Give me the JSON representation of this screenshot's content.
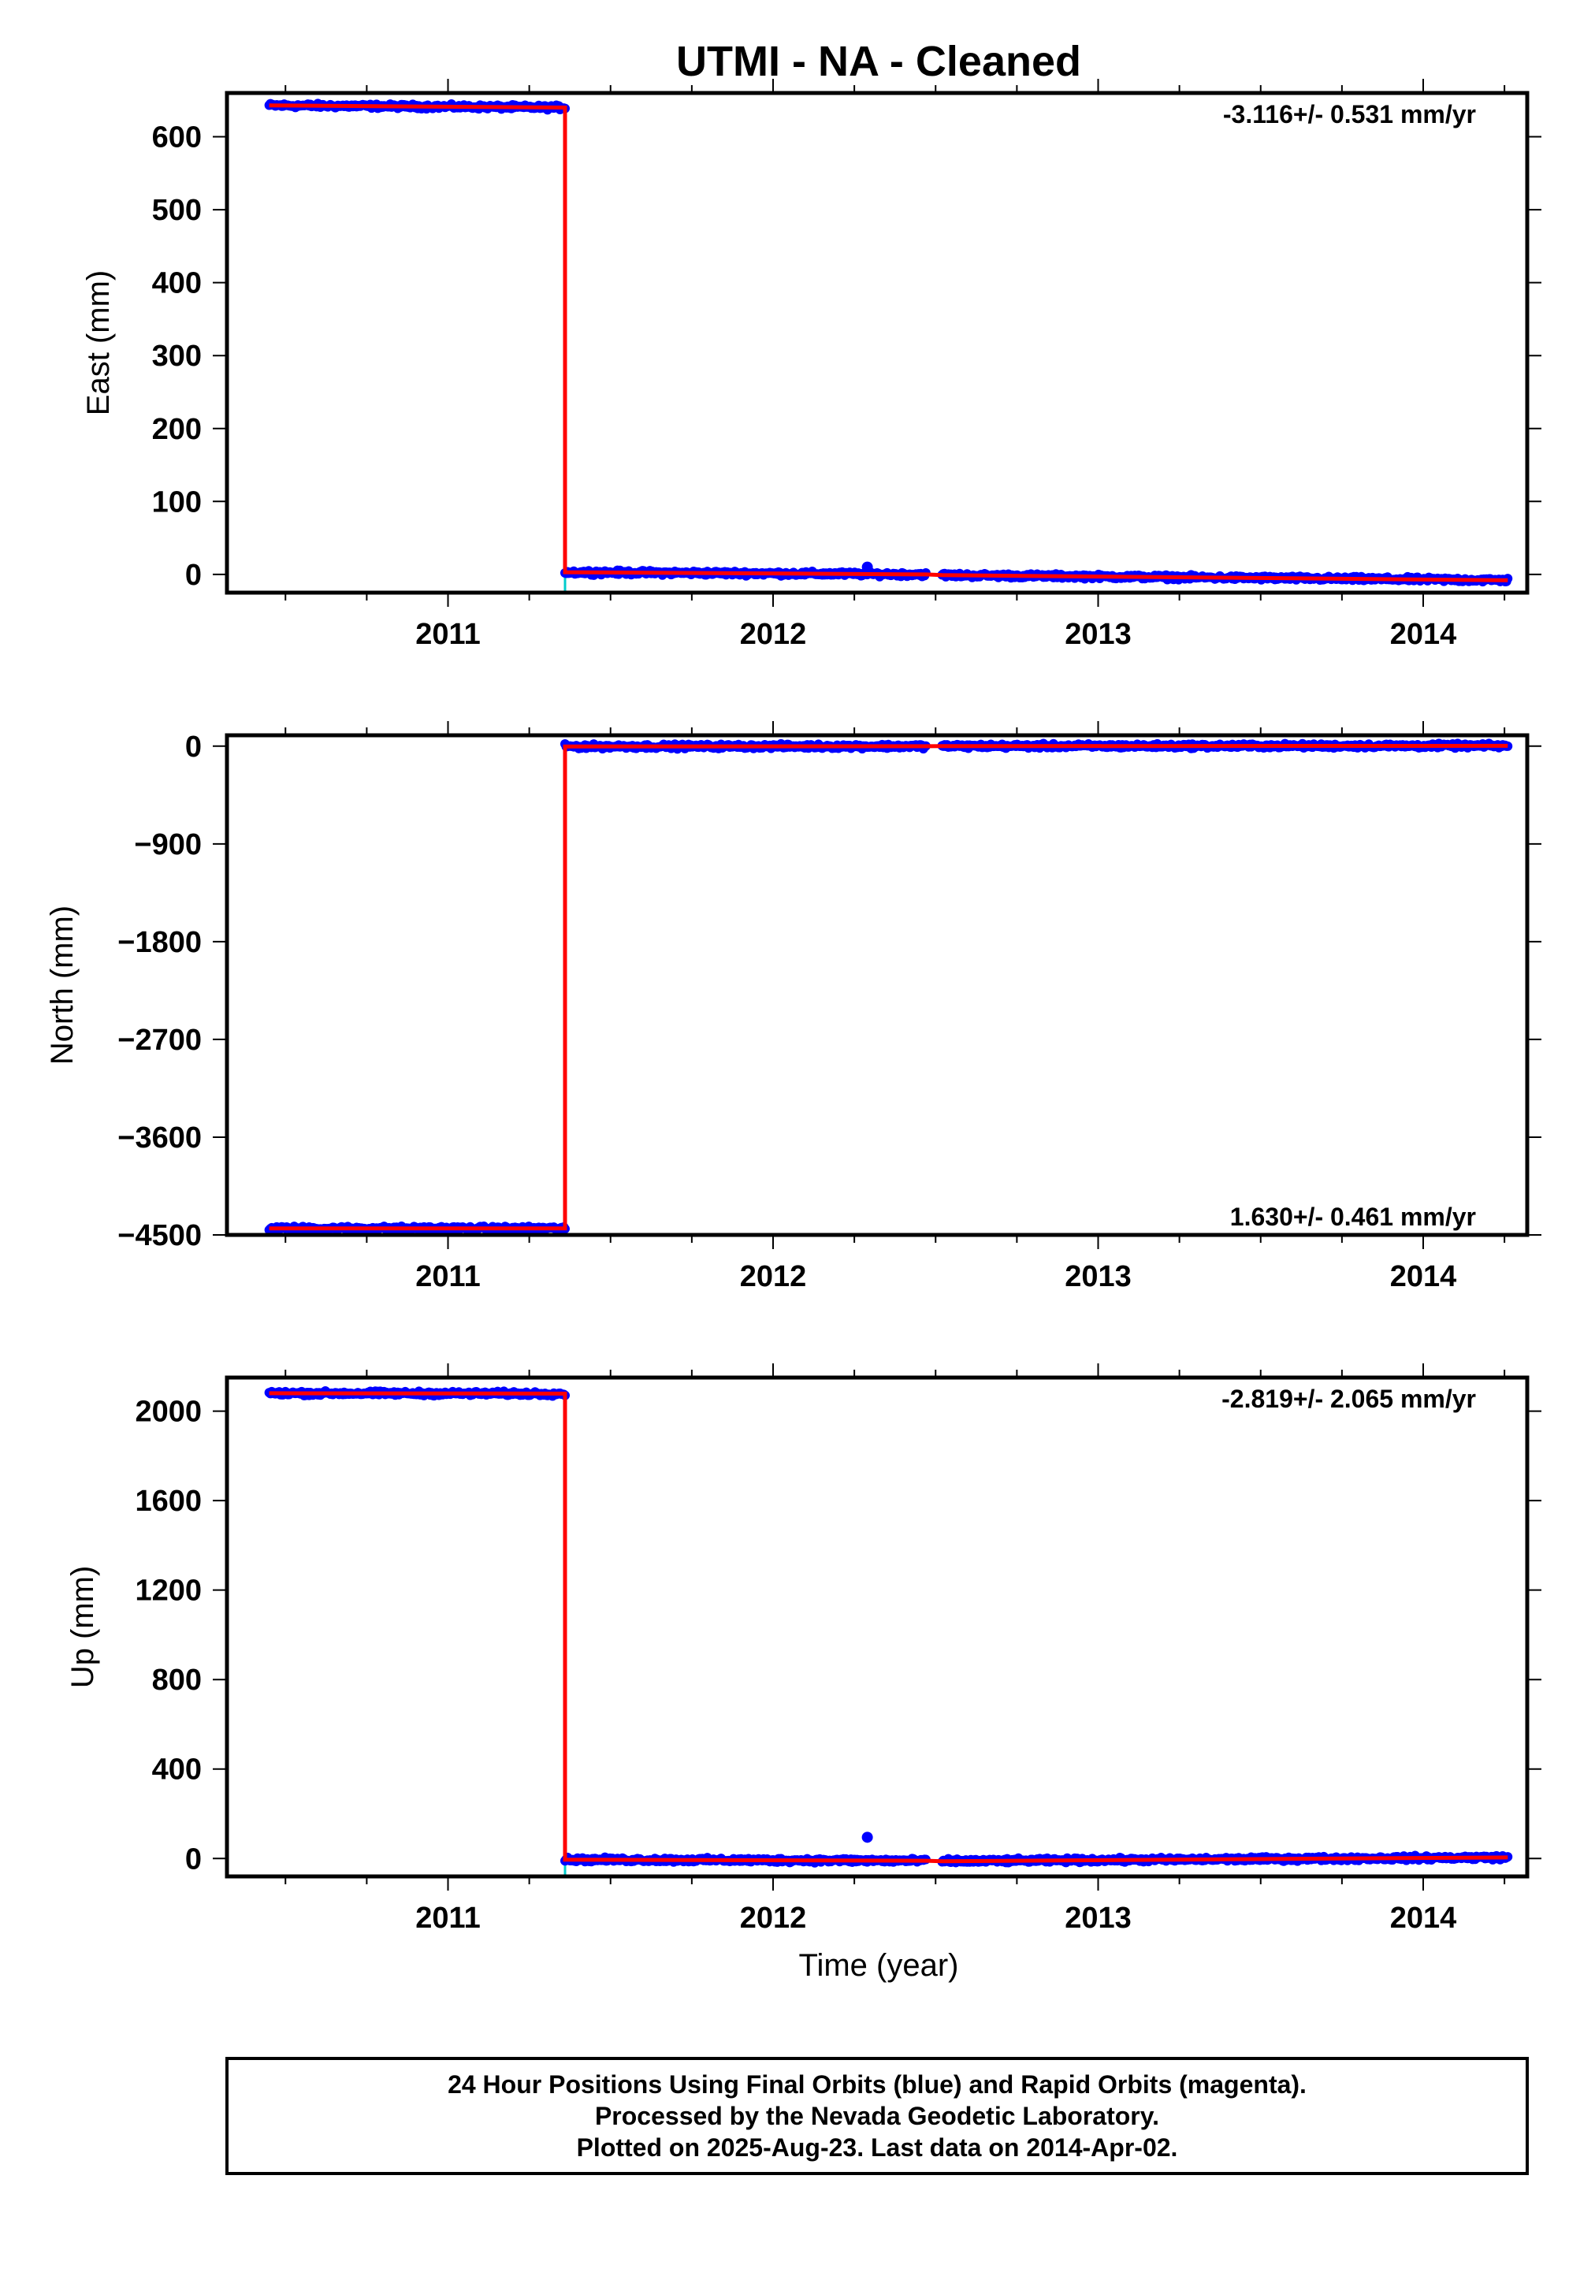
{
  "title": "UTMI  - NA - Cleaned",
  "colors": {
    "final_orbits": "#0000ff",
    "rapid_orbits": "#ff00ff",
    "model": "#ff0000",
    "equipment_change": "#00cccc",
    "frame": "#000000"
  },
  "xlabel": "Time (year)",
  "chart_data": [
    {
      "type": "scatter",
      "panel": "east",
      "ylabel": "East (mm)",
      "rate_label": "-3.116+/- 0.531 mm/yr",
      "rate_position": "top-right",
      "xlim": [
        2010.32,
        2014.32
      ],
      "ylim": [
        -25,
        660
      ],
      "x_ticks": [
        "2011",
        "2012",
        "2013",
        "2014"
      ],
      "y_ticks": [
        "0",
        "100",
        "200",
        "300",
        "400",
        "500",
        "600"
      ],
      "step_epoch": 2011.36,
      "series": [
        {
          "name": "",
          "segments": [
            {
              "x_start": 2010.45,
              "x_end": 2011.36,
              "y_start": 643,
              "y_end": 640
            },
            {
              "x_start": 2011.36,
              "x_end": 2012.47,
              "y_start": 3,
              "y_end": 0
            },
            {
              "x_start": 2012.52,
              "x_end": 2014.26,
              "y_start": -1,
              "y_end": -8
            }
          ]
        }
      ],
      "outliers": [
        {
          "x": 2012.29,
          "y": 10
        }
      ]
    },
    {
      "type": "scatter",
      "panel": "north",
      "ylabel": "North (mm)",
      "rate_label": "1.630+/- 0.461 mm/yr",
      "rate_position": "bottom-right",
      "xlim": [
        2010.32,
        2014.32
      ],
      "ylim": [
        -4500,
        100
      ],
      "x_ticks": [
        "2011",
        "2012",
        "2013",
        "2014"
      ],
      "y_ticks": [
        "0",
        "−900",
        "−1800",
        "−2700",
        "−3600",
        "−4500"
      ],
      "step_epoch": 2011.36,
      "series": [
        {
          "name": "",
          "segments": [
            {
              "x_start": 2010.45,
              "x_end": 2011.36,
              "y_start": -4440,
              "y_end": -4440
            },
            {
              "x_start": 2011.36,
              "x_end": 2012.47,
              "y_start": -3,
              "y_end": -1
            },
            {
              "x_start": 2012.52,
              "x_end": 2014.26,
              "y_start": 0,
              "y_end": 3
            }
          ]
        }
      ],
      "outliers": []
    },
    {
      "type": "scatter",
      "panel": "up",
      "ylabel": "Up (mm)",
      "rate_label": "-2.819+/- 2.065 mm/yr",
      "rate_position": "top-right",
      "xlim": [
        2010.32,
        2014.32
      ],
      "ylim": [
        -80,
        2150
      ],
      "x_ticks": [
        "2011",
        "2012",
        "2013",
        "2014"
      ],
      "y_ticks": [
        "0",
        "400",
        "800",
        "1200",
        "1600",
        "2000"
      ],
      "step_epoch": 2011.36,
      "series": [
        {
          "name": "",
          "segments": [
            {
              "x_start": 2010.45,
              "x_end": 2011.36,
              "y_start": 2080,
              "y_end": 2078
            },
            {
              "x_start": 2011.36,
              "x_end": 2012.47,
              "y_start": -5,
              "y_end": -10
            },
            {
              "x_start": 2012.52,
              "x_end": 2014.26,
              "y_start": -12,
              "y_end": 5
            }
          ]
        }
      ],
      "outliers": [
        {
          "x": 2012.29,
          "y": 95
        }
      ]
    }
  ],
  "footer": {
    "line1": "24 Hour Positions Using Final Orbits (blue) and Rapid Orbits (magenta).",
    "line2": "Processed by the Nevada Geodetic Laboratory.",
    "line3": "Plotted on 2025-Aug-23. Last data on 2014-Apr-02."
  }
}
